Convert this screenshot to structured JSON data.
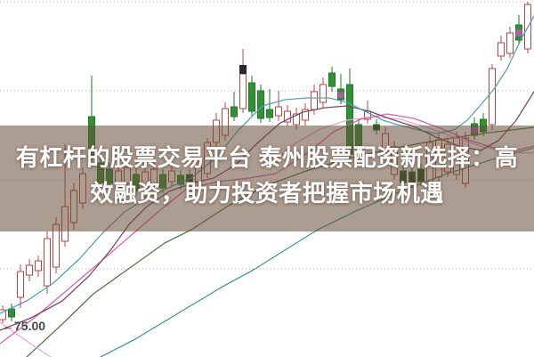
{
  "banner": {
    "line1": "有杠杆的股票交易平台 泰州股票配资新选择：高",
    "line2": "效融资，助力投资者把握市场机遇",
    "bg_color": "rgba(103,76,56,0.55)",
    "text_color": "#ffffff"
  },
  "annotation": {
    "arrow_icon": "←",
    "value": "75.00"
  },
  "chart_data": {
    "type": "candlestick",
    "title": "",
    "xlabel": "",
    "ylabel": "",
    "ylim": [
      75.05,
      95.1
    ],
    "grid": "dotted-horizontal",
    "legend": "none",
    "gridline_prices": [
      95,
      90,
      85,
      80
    ],
    "colors": {
      "grid": "#bdbdbd",
      "up": "#b84742",
      "up_fill": "#ffffff",
      "down": "#2f9235",
      "down_dark": "#234f2a",
      "down_wick": "#1d7a24",
      "accent_purple": "#b35cae",
      "accent_cap": "#26262e",
      "background": "#ffffff"
    },
    "candles": [
      [
        3,
        77.15,
        77.95,
        76.95,
        77.7
      ],
      [
        13,
        77.75,
        78.05,
        77.05,
        77.3
      ],
      [
        23,
        78.4,
        80.25,
        77.8,
        79.85
      ],
      [
        33,
        79.65,
        80.55,
        79.3,
        80.2
      ],
      [
        43,
        79.9,
        80.75,
        79.55,
        80.45
      ],
      [
        53,
        79.05,
        82.1,
        78.6,
        81.7
      ],
      [
        63,
        80.1,
        82.9,
        79.75,
        82.5
      ],
      [
        73,
        81.55,
        87.0,
        81.25,
        83.5
      ],
      [
        83,
        82.6,
        84.85,
        82.2,
        84.4
      ],
      [
        93,
        83.7,
        85.7,
        83.35,
        85.35
      ],
      [
        103,
        88.55,
        90.85,
        86.05,
        86.3
      ],
      [
        113,
        85.95,
        86.35,
        84.55,
        84.85
      ],
      [
        123,
        85.6,
        85.95,
        84.5,
        84.8
      ],
      [
        133,
        84.6,
        85.85,
        84.3,
        85.5
      ],
      [
        143,
        84.8,
        86.05,
        84.5,
        85.7
      ],
      [
        153,
        85.3,
        85.65,
        84.1,
        84.4
      ],
      [
        163,
        84.05,
        85.8,
        83.7,
        85.45
      ],
      [
        173,
        84.65,
        85.95,
        84.35,
        85.6
      ],
      [
        183,
        85.3,
        85.6,
        84.25,
        84.55
      ],
      [
        193,
        84.9,
        85.85,
        84.6,
        85.5
      ],
      [
        203,
        85.25,
        85.55,
        84.45,
        84.75
      ],
      [
        213,
        85.3,
        85.6,
        84.5,
        84.8,
        "dark"
      ],
      [
        223,
        84.9,
        86.1,
        84.6,
        85.75
      ],
      [
        233,
        85.35,
        87.35,
        85.1,
        87.1
      ],
      [
        243,
        87.1,
        88.75,
        86.85,
        88.35
      ],
      [
        253,
        87.5,
        89.35,
        87.2,
        89.0
      ],
      [
        263,
        89.1,
        89.95,
        88.3,
        88.55
      ],
      [
        273,
        89.0,
        92.35,
        88.75,
        90.95,
        "cap"
      ],
      [
        283,
        90.45,
        90.85,
        88.6,
        88.85
      ],
      [
        293,
        90.0,
        90.35,
        88.2,
        88.45
      ],
      [
        303,
        88.95,
        90.1,
        88.25,
        88.5
      ],
      [
        313,
        88.6,
        90.0,
        88.3,
        89.1
      ],
      [
        323,
        88.25,
        89.2,
        88.0,
        88.85
      ],
      [
        333,
        88.1,
        89.05,
        87.85,
        88.7
      ],
      [
        343,
        88.35,
        89.3,
        88.05,
        88.95
      ],
      [
        353,
        88.95,
        90.35,
        88.65,
        89.95
      ],
      [
        363,
        89.35,
        90.75,
        89.05,
        90.35
      ],
      [
        373,
        91.0,
        91.35,
        89.95,
        90.25
      ],
      [
        383,
        90.1,
        90.95,
        89.25,
        89.5,
        "purple"
      ],
      [
        393,
        90.35,
        91.25,
        86.2,
        86.45
      ],
      [
        403,
        88.1,
        88.45,
        86.6,
        86.85
      ],
      [
        413,
        88.4,
        89.45,
        88.15,
        88.85
      ],
      [
        423,
        88.1,
        88.4,
        87.55,
        87.8,
        "dark"
      ],
      [
        433,
        86.6,
        87.95,
        86.3,
        87.6
      ],
      [
        443,
        85.3,
        87.2,
        85.0,
        86.85
      ],
      [
        453,
        85.5,
        85.8,
        84.6,
        84.85,
        "dark"
      ],
      [
        463,
        85.45,
        85.75,
        84.55,
        84.8,
        "dark"
      ],
      [
        473,
        85.6,
        85.9,
        84.65,
        84.9,
        "dark"
      ],
      [
        483,
        84.9,
        87.45,
        84.65,
        87.1
      ],
      [
        493,
        85.15,
        87.6,
        84.9,
        87.25
      ],
      [
        503,
        85.45,
        87.35,
        85.15,
        87.0
      ],
      [
        513,
        85.3,
        87.7,
        85.0,
        87.35
      ],
      [
        523,
        84.8,
        87.7,
        84.55,
        87.35
      ],
      [
        533,
        88.15,
        88.5,
        87.25,
        87.5,
        "purple"
      ],
      [
        543,
        88.4,
        88.75,
        87.45,
        87.7
      ],
      [
        553,
        88.1,
        91.5,
        87.8,
        91.25
      ],
      [
        563,
        91.95,
        93.1,
        91.7,
        92.7
      ],
      [
        573,
        92.1,
        93.6,
        91.85,
        93.25
      ],
      [
        583,
        93.7,
        94.25,
        92.6,
        92.85,
        "purple"
      ],
      [
        593,
        92.35,
        95.0,
        92.1,
        94.85
      ]
    ],
    "moving_averages": [
      {
        "name": "ma-slow-teal",
        "color": "#3d948c",
        "points": [
          [
            113,
            75.05
          ],
          [
            150,
            76.0
          ],
          [
            200,
            77.5
          ],
          [
            250,
            79.0
          ],
          [
            285,
            79.95
          ],
          [
            320,
            81.05
          ],
          [
            357,
            82.2
          ],
          [
            400,
            83.25
          ],
          [
            450,
            84.35
          ],
          [
            500,
            85.3
          ],
          [
            550,
            86.1
          ],
          [
            600,
            86.8
          ]
        ]
      },
      {
        "name": "ma-dark-green",
        "color": "#4d7342",
        "points": [
          [
            30,
            75.05
          ],
          [
            70,
            76.9
          ],
          [
            105,
            78.6
          ],
          [
            150,
            80.2
          ],
          [
            185,
            81.45
          ],
          [
            215,
            82.2
          ],
          [
            255,
            83.5
          ],
          [
            300,
            84.7
          ],
          [
            350,
            85.6
          ],
          [
            400,
            86.3
          ],
          [
            450,
            86.85
          ],
          [
            500,
            87.3
          ],
          [
            550,
            87.65
          ],
          [
            600,
            87.95
          ]
        ]
      },
      {
        "name": "ma-pale-pink-left",
        "color": "#e4a9d4",
        "points": [
          [
            0,
            77.0
          ],
          [
            20,
            76.3
          ],
          [
            40,
            75.6
          ],
          [
            57,
            75.05
          ]
        ]
      },
      {
        "name": "ma-pale-pink-right",
        "color": "#e4a9d4",
        "points": [
          [
            300,
            85.7
          ],
          [
            330,
            87.0
          ],
          [
            360,
            87.85
          ],
          [
            390,
            88.35
          ],
          [
            420,
            88.55
          ],
          [
            450,
            88.4
          ],
          [
            480,
            87.95
          ],
          [
            510,
            87.4
          ],
          [
            540,
            86.9
          ],
          [
            570,
            86.55
          ],
          [
            600,
            86.5
          ]
        ]
      },
      {
        "name": "ma-magenta",
        "color": "#d45fa8",
        "points": [
          [
            0,
            75.8
          ],
          [
            40,
            77.3
          ],
          [
            80,
            79.0
          ],
          [
            120,
            80.7
          ],
          [
            150,
            82.0
          ],
          [
            180,
            83.3
          ],
          [
            210,
            84.5
          ],
          [
            245,
            84.9
          ],
          [
            280,
            85.1
          ],
          [
            310,
            85.35
          ],
          [
            345,
            86.5
          ],
          [
            375,
            87.7
          ],
          [
            405,
            88.4
          ],
          [
            435,
            88.7
          ],
          [
            465,
            88.45
          ],
          [
            495,
            87.9
          ],
          [
            525,
            87.25
          ],
          [
            555,
            86.8
          ],
          [
            580,
            86.65
          ],
          [
            600,
            86.9
          ]
        ]
      },
      {
        "name": "ma-maroon",
        "color": "#74455c",
        "points": [
          [
            0,
            76.55
          ],
          [
            35,
            77.25
          ],
          [
            70,
            78.2
          ],
          [
            100,
            79.6
          ],
          [
            125,
            81.1
          ],
          [
            145,
            82.5
          ],
          [
            165,
            83.5
          ],
          [
            190,
            84.35
          ],
          [
            215,
            84.8
          ],
          [
            240,
            85.1
          ],
          [
            265,
            85.85
          ],
          [
            290,
            87.1
          ],
          [
            315,
            88.2
          ],
          [
            340,
            88.8
          ],
          [
            365,
            89.05
          ],
          [
            390,
            89.15
          ],
          [
            415,
            88.85
          ],
          [
            440,
            88.4
          ],
          [
            465,
            88.0
          ],
          [
            490,
            87.4
          ],
          [
            515,
            86.9
          ],
          [
            540,
            86.65
          ],
          [
            560,
            87.2
          ],
          [
            580,
            88.35
          ],
          [
            600,
            89.95
          ]
        ]
      },
      {
        "name": "ma-fast-teal",
        "color": "#4f9fae",
        "points": [
          [
            0,
            77.5
          ],
          [
            30,
            78.2
          ],
          [
            60,
            79.2
          ],
          [
            90,
            80.6
          ],
          [
            115,
            82.0
          ],
          [
            140,
            83.2
          ],
          [
            170,
            84.1
          ],
          [
            200,
            84.8
          ],
          [
            215,
            85.1
          ],
          [
            245,
            86.35
          ],
          [
            267,
            87.75
          ],
          [
            295,
            89.15
          ],
          [
            320,
            89.5
          ],
          [
            345,
            89.6
          ],
          [
            370,
            89.6
          ],
          [
            390,
            89.35
          ],
          [
            410,
            88.85
          ],
          [
            430,
            88.35
          ],
          [
            450,
            88.05
          ],
          [
            470,
            87.8
          ],
          [
            490,
            87.6
          ],
          [
            510,
            87.8
          ],
          [
            525,
            88.35
          ],
          [
            540,
            89.2
          ],
          [
            555,
            90.1
          ],
          [
            570,
            91.25
          ],
          [
            585,
            92.85
          ],
          [
            600,
            94.2
          ]
        ]
      }
    ]
  }
}
